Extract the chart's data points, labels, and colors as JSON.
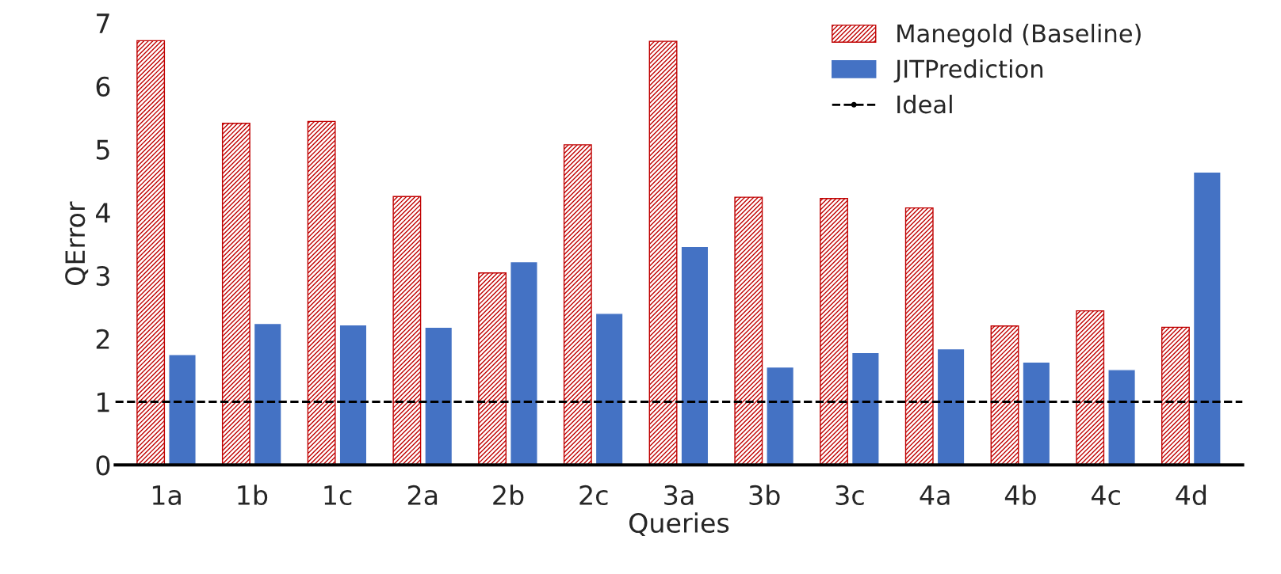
{
  "chart_data": {
    "type": "bar",
    "xlabel": "Queries",
    "ylabel": "QError",
    "categories": [
      "1a",
      "1b",
      "1c",
      "2a",
      "2b",
      "2c",
      "3a",
      "3b",
      "3c",
      "4a",
      "4b",
      "4c",
      "4d"
    ],
    "series": [
      {
        "name": "Manegold (Baseline)",
        "color": "#c00000",
        "values": [
          6.72,
          5.41,
          5.44,
          4.25,
          3.04,
          5.07,
          6.71,
          4.24,
          4.22,
          4.07,
          2.2,
          2.44,
          2.18
        ]
      },
      {
        "name": "JITPrediction",
        "color": "#4472c4",
        "values": [
          1.75,
          2.24,
          2.22,
          2.18,
          3.22,
          2.4,
          3.46,
          1.55,
          1.78,
          1.84,
          1.63,
          1.51,
          4.64
        ]
      }
    ],
    "ref_lines": [
      {
        "axis": "y",
        "value": 1,
        "label": "Ideal",
        "color": "#000000",
        "line_style": "dashed"
      }
    ],
    "ylim": [
      0,
      7
    ],
    "yticks": [
      0,
      1,
      2,
      3,
      4,
      5,
      6,
      7
    ],
    "grid": false,
    "legend": "top right"
  }
}
